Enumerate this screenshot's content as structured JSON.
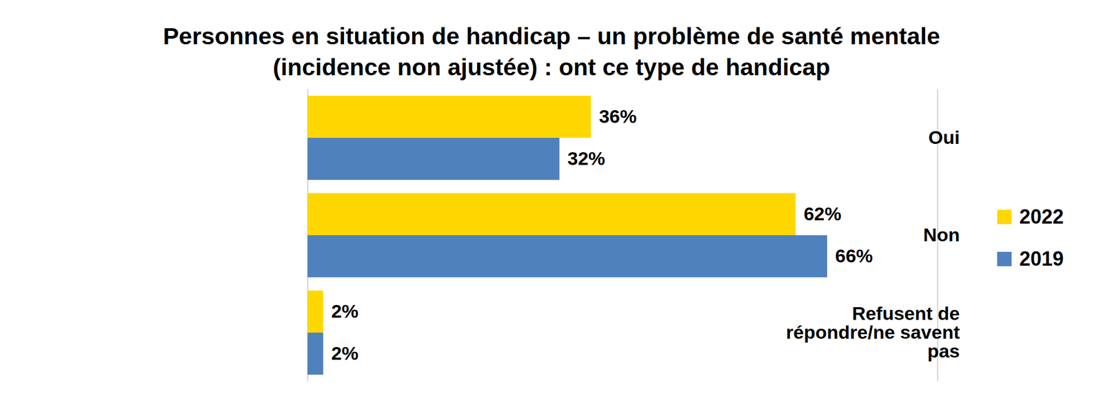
{
  "chart_data": {
    "type": "bar",
    "title": "Personnes en situation de handicap – un problème de santé mentale (incidence non ajustée) : ont ce type de handicap",
    "orientation": "horizontal",
    "categories": [
      "Oui",
      "Non",
      "Refusent de répondre/ne savent pas"
    ],
    "series": [
      {
        "name": "2022",
        "color": "#FFD700",
        "values": [
          36,
          62,
          2
        ],
        "value_labels": [
          "36%",
          "62%",
          "2%"
        ]
      },
      {
        "name": "2019",
        "color": "#4F81BD",
        "values": [
          32,
          66,
          2
        ],
        "value_labels": [
          "32%",
          "66%",
          "2%"
        ]
      }
    ],
    "xlim": [
      0,
      80
    ],
    "data_labels": true,
    "tick_labels": "y",
    "legend": "right"
  }
}
